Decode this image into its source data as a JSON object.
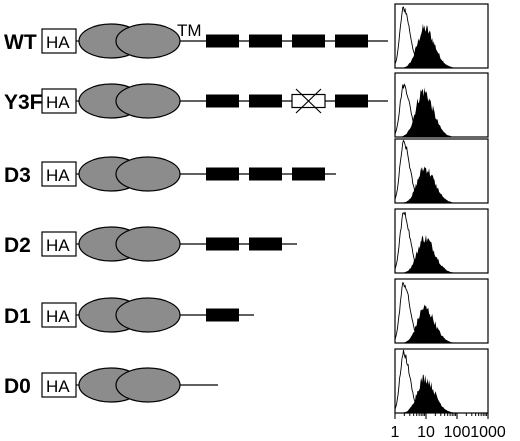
{
  "tag_label": "HA",
  "tm_label": "TM",
  "colors": {
    "ink": "#000000",
    "domain_fill": "#8c8c8c",
    "mutated_box_fill": "#ffffff",
    "histogram_fill": "#000000",
    "histogram_outline": "#000000"
  },
  "constructs": [
    {
      "name": "WT",
      "cytoplasmic_blocks": [
        "filled",
        "filled",
        "filled",
        "filled"
      ],
      "show_tm": true
    },
    {
      "name": "Y3F",
      "cytoplasmic_blocks": [
        "filled",
        "filled",
        "mutated",
        "filled"
      ],
      "show_tm": false
    },
    {
      "name": "D3",
      "cytoplasmic_blocks": [
        "filled",
        "filled",
        "filled"
      ],
      "show_tm": false
    },
    {
      "name": "D2",
      "cytoplasmic_blocks": [
        "filled",
        "filled"
      ],
      "show_tm": false
    },
    {
      "name": "D1",
      "cytoplasmic_blocks": [
        "filled"
      ],
      "show_tm": false
    },
    {
      "name": "D0",
      "cytoplasmic_blocks": [],
      "show_tm": false
    }
  ],
  "flow_axis": {
    "scale": "log",
    "range": [
      1,
      1000
    ],
    "tick_labels": [
      "1",
      "10",
      "100",
      "1000"
    ],
    "tick_values": [
      1,
      10,
      100,
      1000
    ]
  }
}
